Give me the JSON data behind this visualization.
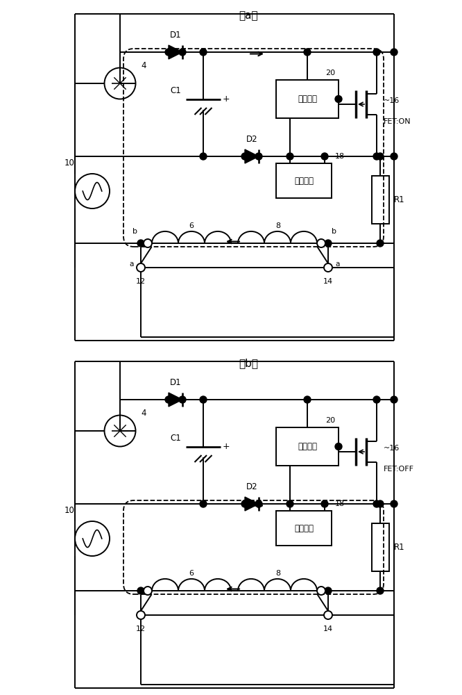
{
  "title_a": "（a）",
  "title_b": "（b）",
  "bg_color": "#ffffff",
  "line_color": "#000000",
  "label_20": "20",
  "label_18": "18",
  "label_16": "16",
  "label_d1": "D1",
  "label_d2": "D2",
  "label_c1": "C1",
  "label_r1": "R1",
  "label_4": "4",
  "label_10": "10",
  "label_6": "6",
  "label_8": "8",
  "label_12": "12",
  "label_14": "14",
  "label_b": "b",
  "label_a_sw": "a",
  "label_feton": "FET:ON",
  "label_fetoff": "FET:OFF",
  "label_ctrl": "控制电路",
  "label_curr": "电流检测"
}
